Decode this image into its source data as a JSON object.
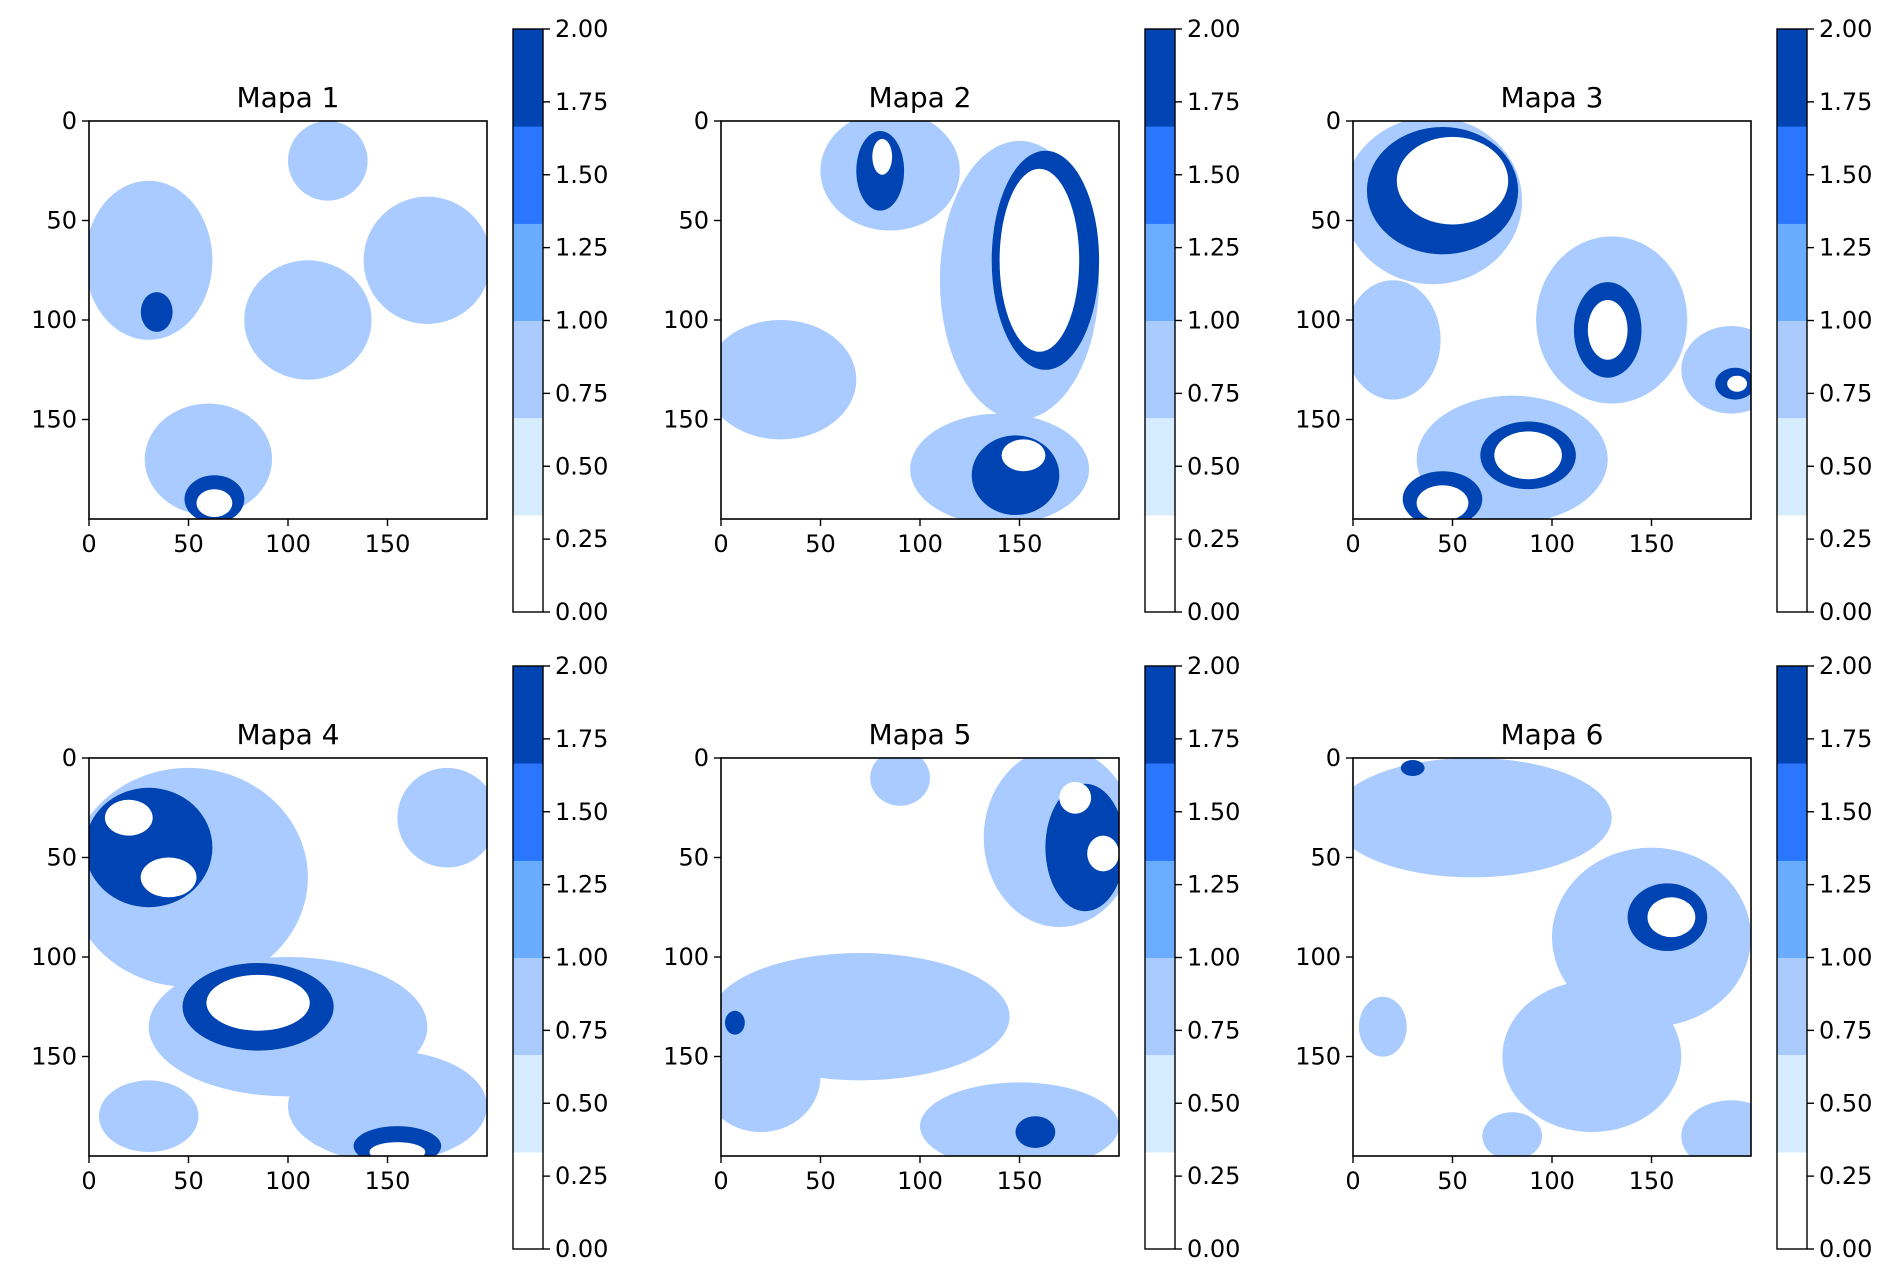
{
  "chart_data": {
    "type": "heatmap",
    "grid_size": 200,
    "colorbar": {
      "range": [
        0,
        2
      ],
      "ticks": [
        "0.00",
        "0.25",
        "0.50",
        "0.75",
        "1.00",
        "1.25",
        "1.50",
        "1.75",
        "2.00"
      ],
      "bands": [
        {
          "from": 0.0,
          "to": 0.333,
          "color": "#ffffff"
        },
        {
          "from": 0.333,
          "to": 0.667,
          "color": "#d6ecff"
        },
        {
          "from": 0.667,
          "to": 1.0,
          "color": "#a9cbff"
        },
        {
          "from": 1.0,
          "to": 1.333,
          "color": "#6aacff"
        },
        {
          "from": 1.333,
          "to": 1.667,
          "color": "#2a76ff"
        },
        {
          "from": 1.667,
          "to": 2.0,
          "color": "#0044b3"
        }
      ]
    },
    "x_ticks": [
      "0",
      "50",
      "100",
      "150"
    ],
    "y_ticks": [
      "0",
      "50",
      "100",
      "150"
    ],
    "maps": [
      {
        "title": "Mapa 1",
        "regions": [
          {
            "value": 1,
            "x": 30,
            "y": 70,
            "rx": 32,
            "ry": 40
          },
          {
            "value": 1,
            "x": 60,
            "y": 170,
            "rx": 32,
            "ry": 28
          },
          {
            "value": 1,
            "x": 170,
            "y": 70,
            "rx": 32,
            "ry": 32
          },
          {
            "value": 1,
            "x": 110,
            "y": 100,
            "rx": 32,
            "ry": 30
          },
          {
            "value": 1,
            "x": 120,
            "y": 20,
            "rx": 20,
            "ry": 20
          },
          {
            "value": 2,
            "x": 34,
            "y": 96,
            "rx": 8,
            "ry": 10
          },
          {
            "value": 2,
            "x": 63,
            "y": 190,
            "rx": 15,
            "ry": 12
          },
          {
            "value": 0,
            "x": 63,
            "y": 192,
            "rx": 9,
            "ry": 7
          }
        ]
      },
      {
        "title": "Mapa 2",
        "regions": [
          {
            "value": 1,
            "x": 30,
            "y": 130,
            "rx": 38,
            "ry": 30
          },
          {
            "value": 1,
            "x": 150,
            "y": 80,
            "rx": 40,
            "ry": 70
          },
          {
            "value": 1,
            "x": 85,
            "y": 25,
            "rx": 35,
            "ry": 30
          },
          {
            "value": 1,
            "x": 140,
            "y": 175,
            "rx": 45,
            "ry": 28
          },
          {
            "value": 2,
            "x": 163,
            "y": 70,
            "rx": 27,
            "ry": 55
          },
          {
            "value": 0,
            "x": 160,
            "y": 70,
            "rx": 20,
            "ry": 46
          },
          {
            "value": 2,
            "x": 80,
            "y": 25,
            "rx": 12,
            "ry": 20
          },
          {
            "value": 0,
            "x": 81,
            "y": 18,
            "rx": 5,
            "ry": 9
          },
          {
            "value": 2,
            "x": 148,
            "y": 178,
            "rx": 22,
            "ry": 20
          },
          {
            "value": 0,
            "x": 152,
            "y": 168,
            "rx": 11,
            "ry": 8
          }
        ]
      },
      {
        "title": "Mapa 3",
        "regions": [
          {
            "value": 1,
            "x": 40,
            "y": 40,
            "rx": 45,
            "ry": 42
          },
          {
            "value": 1,
            "x": 20,
            "y": 110,
            "rx": 24,
            "ry": 30
          },
          {
            "value": 1,
            "x": 130,
            "y": 100,
            "rx": 38,
            "ry": 42
          },
          {
            "value": 1,
            "x": 190,
            "y": 125,
            "rx": 25,
            "ry": 22
          },
          {
            "value": 1,
            "x": 80,
            "y": 170,
            "rx": 48,
            "ry": 32
          },
          {
            "value": 2,
            "x": 45,
            "y": 35,
            "rx": 38,
            "ry": 32
          },
          {
            "value": 0,
            "x": 50,
            "y": 30,
            "rx": 28,
            "ry": 22
          },
          {
            "value": 2,
            "x": 128,
            "y": 105,
            "rx": 17,
            "ry": 24
          },
          {
            "value": 0,
            "x": 128,
            "y": 105,
            "rx": 10,
            "ry": 15
          },
          {
            "value": 2,
            "x": 88,
            "y": 168,
            "rx": 24,
            "ry": 17
          },
          {
            "value": 0,
            "x": 88,
            "y": 168,
            "rx": 17,
            "ry": 12
          },
          {
            "value": 2,
            "x": 45,
            "y": 190,
            "rx": 20,
            "ry": 14
          },
          {
            "value": 0,
            "x": 45,
            "y": 192,
            "rx": 13,
            "ry": 9
          },
          {
            "value": 2,
            "x": 192,
            "y": 132,
            "rx": 10,
            "ry": 8
          },
          {
            "value": 0,
            "x": 193,
            "y": 132,
            "rx": 5,
            "ry": 4
          }
        ]
      },
      {
        "title": "Mapa 4",
        "regions": [
          {
            "value": 1,
            "x": 50,
            "y": 60,
            "rx": 60,
            "ry": 55
          },
          {
            "value": 1,
            "x": 100,
            "y": 135,
            "rx": 70,
            "ry": 35
          },
          {
            "value": 1,
            "x": 150,
            "y": 175,
            "rx": 50,
            "ry": 28
          },
          {
            "value": 1,
            "x": 180,
            "y": 30,
            "rx": 25,
            "ry": 25
          },
          {
            "value": 1,
            "x": 30,
            "y": 180,
            "rx": 25,
            "ry": 18
          },
          {
            "value": 2,
            "x": 30,
            "y": 45,
            "rx": 32,
            "ry": 30
          },
          {
            "value": 0,
            "x": 20,
            "y": 30,
            "rx": 12,
            "ry": 9
          },
          {
            "value": 0,
            "x": 40,
            "y": 60,
            "rx": 14,
            "ry": 10
          },
          {
            "value": 2,
            "x": 85,
            "y": 125,
            "rx": 38,
            "ry": 22
          },
          {
            "value": 0,
            "x": 85,
            "y": 123,
            "rx": 26,
            "ry": 14
          },
          {
            "value": 2,
            "x": 155,
            "y": 195,
            "rx": 22,
            "ry": 10
          },
          {
            "value": 0,
            "x": 155,
            "y": 198,
            "rx": 14,
            "ry": 5
          }
        ]
      },
      {
        "title": "Mapa 5",
        "regions": [
          {
            "value": 1,
            "x": 170,
            "y": 40,
            "rx": 38,
            "ry": 45
          },
          {
            "value": 1,
            "x": 70,
            "y": 130,
            "rx": 75,
            "ry": 32
          },
          {
            "value": 1,
            "x": 20,
            "y": 160,
            "rx": 30,
            "ry": 28
          },
          {
            "value": 1,
            "x": 150,
            "y": 185,
            "rx": 50,
            "ry": 22
          },
          {
            "value": 1,
            "x": 90,
            "y": 10,
            "rx": 15,
            "ry": 14
          },
          {
            "value": 2,
            "x": 183,
            "y": 45,
            "rx": 20,
            "ry": 32
          },
          {
            "value": 0,
            "x": 178,
            "y": 20,
            "rx": 8,
            "ry": 8
          },
          {
            "value": 0,
            "x": 192,
            "y": 48,
            "rx": 8,
            "ry": 9
          },
          {
            "value": 2,
            "x": 158,
            "y": 188,
            "rx": 10,
            "ry": 8
          },
          {
            "value": 2,
            "x": 7,
            "y": 133,
            "rx": 5,
            "ry": 6
          }
        ]
      },
      {
        "title": "Mapa 6",
        "regions": [
          {
            "value": 1,
            "x": 60,
            "y": 30,
            "rx": 70,
            "ry": 30
          },
          {
            "value": 1,
            "x": 150,
            "y": 90,
            "rx": 50,
            "ry": 45
          },
          {
            "value": 1,
            "x": 120,
            "y": 150,
            "rx": 45,
            "ry": 38
          },
          {
            "value": 1,
            "x": 190,
            "y": 190,
            "rx": 25,
            "ry": 18
          },
          {
            "value": 1,
            "x": 15,
            "y": 135,
            "rx": 12,
            "ry": 15
          },
          {
            "value": 1,
            "x": 80,
            "y": 190,
            "rx": 15,
            "ry": 12
          },
          {
            "value": 2,
            "x": 158,
            "y": 80,
            "rx": 20,
            "ry": 17
          },
          {
            "value": 0,
            "x": 160,
            "y": 80,
            "rx": 12,
            "ry": 10
          },
          {
            "value": 2,
            "x": 30,
            "y": 5,
            "rx": 6,
            "ry": 4
          }
        ]
      }
    ]
  }
}
